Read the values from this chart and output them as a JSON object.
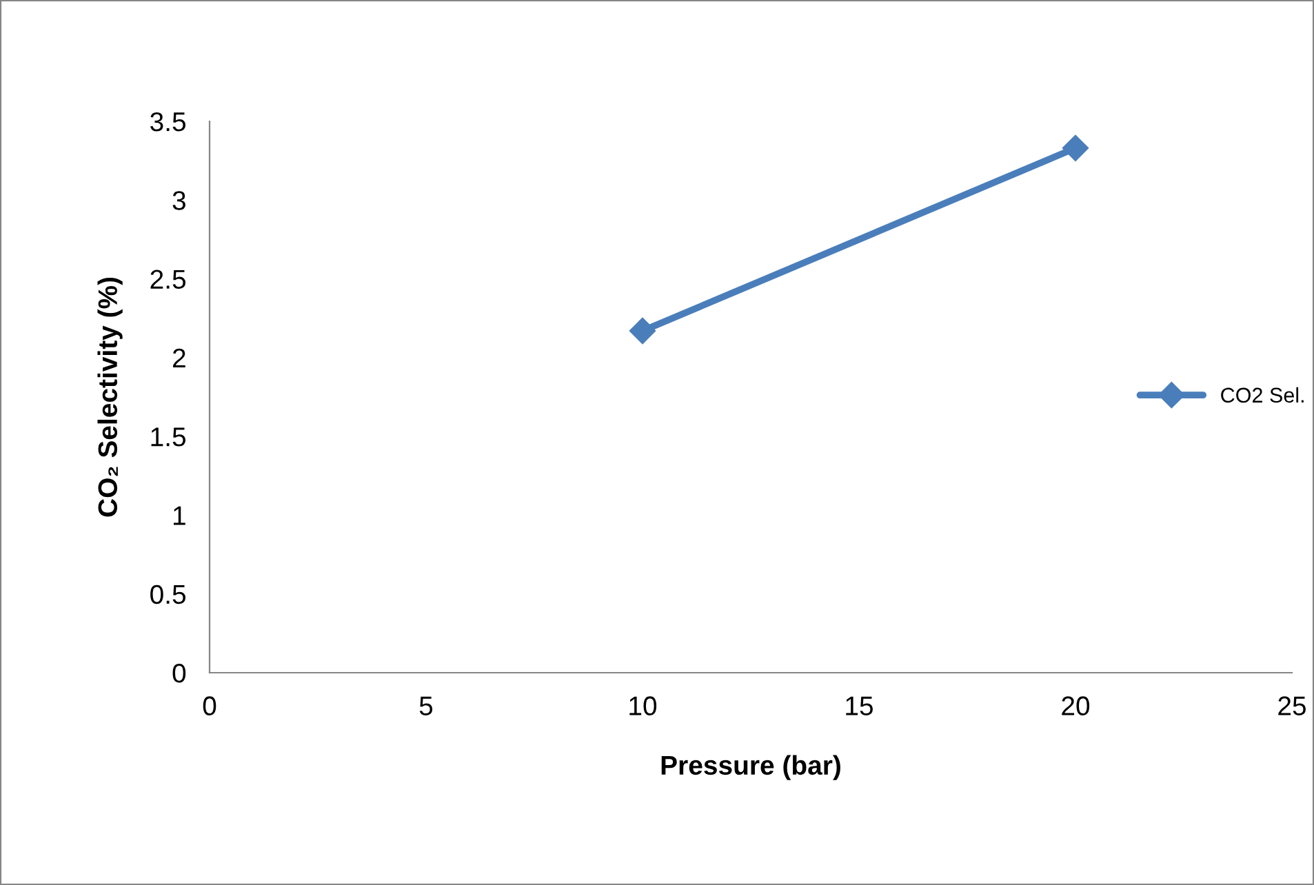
{
  "chart_data": {
    "type": "line",
    "xlabel": "Pressure (bar)",
    "ylabel": "CO₂ Selectivity (%)",
    "x": [
      10,
      20
    ],
    "series": [
      {
        "name": "CO2 Sel.",
        "color": "#4a7ebb",
        "values": [
          2.17,
          3.33
        ]
      }
    ],
    "xlim": [
      0,
      25
    ],
    "xticks": [
      0,
      5,
      10,
      15,
      20,
      25
    ],
    "ylim": [
      0,
      3.5
    ],
    "yticks": [
      0,
      0.5,
      1,
      1.5,
      2,
      2.5,
      3,
      3.5
    ],
    "grid": false,
    "legend": "right",
    "marker": "diamond",
    "line_style": "solid"
  }
}
